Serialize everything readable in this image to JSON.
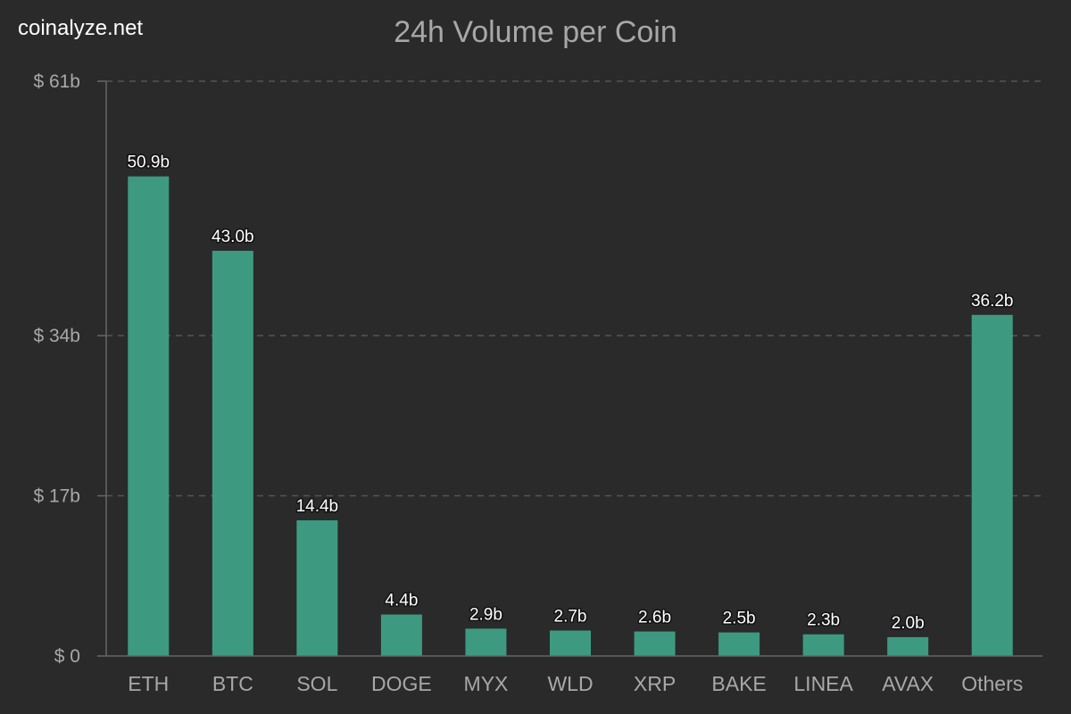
{
  "watermark": "coinalyze.net",
  "chart_data": {
    "type": "bar",
    "title": "24h Volume per Coin",
    "xlabel": "",
    "ylabel": "",
    "categories": [
      "ETH",
      "BTC",
      "SOL",
      "DOGE",
      "MYX",
      "WLD",
      "XRP",
      "BAKE",
      "LINEA",
      "AVAX",
      "Others"
    ],
    "values": [
      50.9,
      43.0,
      14.4,
      4.4,
      2.9,
      2.7,
      2.6,
      2.5,
      2.3,
      2.0,
      36.2
    ],
    "data_labels": [
      "50.9b",
      "43.0b",
      "14.4b",
      "4.4b",
      "2.9b",
      "2.7b",
      "2.6b",
      "2.5b",
      "2.3b",
      "2.0b",
      "36.2b"
    ],
    "yticks": [
      0,
      17,
      34,
      61
    ],
    "ytick_labels": [
      "$ 0",
      "$ 17b",
      "$ 34b",
      "$ 61b"
    ],
    "ylim": [
      0,
      61
    ],
    "grid": "horizontal dashed",
    "legend": "none",
    "colors": {
      "bar": "#3d9a80",
      "background": "#2a2a2a",
      "grid": "#555555",
      "axis": "#666666",
      "text": "#a8a8a8",
      "data_label": "#ffffff"
    }
  }
}
